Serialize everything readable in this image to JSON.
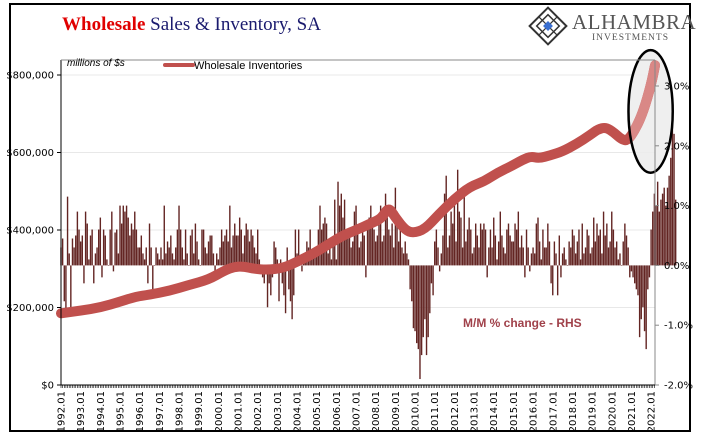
{
  "title": {
    "highlight": "Wholesale",
    "rest": " Sales & Inventory, SA"
  },
  "logo": {
    "name": "ALHAMBRA",
    "sub": "INVESTMENTS",
    "icon": "diamond-lattice-icon"
  },
  "colors": {
    "inventory_line": "#c0504d",
    "inventory_highlight": "#d98886",
    "bars": "#632523",
    "title_red": "#e00000",
    "title_navy": "#1a1a6e",
    "annotation": "#a0414a",
    "highlight_fill": "#ececec"
  },
  "chart_data": {
    "type": "bar+line",
    "title": "Wholesale Sales & Inventory, SA",
    "unit_label": "millions of $s",
    "annotation": "M/M % change - RHS",
    "legend": [
      {
        "name": "Wholesale Inventories",
        "type": "line"
      }
    ],
    "legend_placement": "top-left",
    "grid": true,
    "left_axis": {
      "range": [
        0,
        800000
      ],
      "ticks": [
        0,
        200000,
        400000,
        600000,
        800000
      ],
      "tick_labels": [
        "$0",
        "$200,000",
        "$400,000",
        "$600,000",
        "$800,000"
      ]
    },
    "right_axis": {
      "range": [
        -2.0,
        3.0
      ],
      "ticks": [
        -2.0,
        -1.0,
        0.0,
        1.0,
        2.0,
        3.0
      ],
      "tick_labels": [
        "-2.0%",
        "-1.0%",
        "0.0%",
        "1.0%",
        "2.0%",
        "3.0%"
      ]
    },
    "x_axis": {
      "start": 1992.0,
      "end": 2022.25,
      "tick_labels": [
        "1992.01",
        "1993.01",
        "1994.01",
        "1995.01",
        "1996.01",
        "1997.01",
        "1998.01",
        "1999.01",
        "2000.01",
        "2001.01",
        "2002.01",
        "2003.01",
        "2004.01",
        "2005.01",
        "2006.01",
        "2007.01",
        "2008.01",
        "2009.01",
        "2010.01",
        "2011.01",
        "2012.01",
        "2013.01",
        "2014.01",
        "2015.01",
        "2016.01",
        "2017.01",
        "2018.01",
        "2019.01",
        "2020.01",
        "2021.01",
        "2022.01"
      ]
    },
    "inventory_series": {
      "name": "Wholesale Inventories",
      "axis": "left",
      "x": [
        1992.0,
        1993.0,
        1994.0,
        1995.0,
        1995.8,
        1996.5,
        1997.5,
        1998.5,
        1999.5,
        2000.3,
        2000.8,
        2001.3,
        2001.8,
        2002.5,
        2003.3,
        2004.0,
        2004.8,
        2005.5,
        2006.3,
        2007.0,
        2007.8,
        2008.3,
        2008.65,
        2009.0,
        2009.5,
        2009.9,
        2010.5,
        2011.2,
        2012.0,
        2012.8,
        2013.5,
        2014.2,
        2014.9,
        2015.5,
        2015.9,
        2016.3,
        2016.9,
        2017.5,
        2018.2,
        2018.9,
        2019.3,
        2019.7,
        2020.1,
        2020.5,
        2020.8,
        2021.2,
        2021.6,
        2022.0,
        2022.2
      ],
      "values": [
        185000,
        192000,
        200000,
        215000,
        228000,
        233000,
        243000,
        258000,
        272000,
        295000,
        305000,
        306000,
        300000,
        297000,
        302000,
        318000,
        338000,
        360000,
        385000,
        400000,
        418000,
        430000,
        460000,
        432000,
        400000,
        392000,
        402000,
        440000,
        480000,
        512000,
        525000,
        548000,
        565000,
        582000,
        590000,
        585000,
        593000,
        603000,
        622000,
        645000,
        660000,
        665000,
        652000,
        634000,
        630000,
        660000,
        705000,
        775000,
        825000
      ]
    },
    "mom_series": {
      "name": "M/M % change - RHS",
      "axis": "right",
      "start": 1992.0,
      "step_months": 1,
      "values": [
        0.3,
        0.45,
        -0.6,
        -0.8,
        1.15,
        0.2,
        -0.8,
        0.45,
        0.3,
        0.5,
        0.9,
        0.6,
        0.4,
        0.5,
        -0.3,
        0.9,
        0.7,
        0.1,
        0.5,
        0.6,
        -0.3,
        0.2,
        0.3,
        0.6,
        0.8,
        -0.2,
        0.6,
        0.5,
        0.1,
        0.0,
        0.6,
        0.9,
        -0.1,
        0.55,
        0.6,
        0.2,
        1.0,
        0.7,
        1.0,
        0.9,
        1.0,
        0.8,
        0.5,
        0.7,
        0.6,
        0.9,
        0.6,
        0.3,
        0.3,
        0.5,
        0.2,
        0.1,
        0.3,
        -0.3,
        0.7,
        0.3,
        -0.4,
        0.0,
        0.3,
        0.2,
        0.1,
        0.3,
        0.1,
        1.0,
        0.2,
        0.4,
        0.3,
        0.5,
        0.2,
        0.1,
        0.3,
        0.6,
        1.0,
        0.6,
        0.3,
        0.1,
        0.6,
        0.2,
        0.0,
        0.5,
        0.6,
        0.2,
        0.7,
        0.4,
        0.1,
        0.0,
        0.6,
        0.6,
        0.3,
        0.2,
        0.4,
        0.5,
        0.5,
        0.2,
        -0.1,
        0.2,
        0.1,
        0.3,
        0.6,
        0.4,
        0.5,
        0.6,
        0.4,
        1.0,
        0.3,
        0.5,
        0.7,
        0.5,
        0.5,
        0.8,
        0.6,
        0.2,
        0.5,
        0.7,
        0.6,
        0.4,
        0.6,
        0.5,
        0.3,
        0.2,
        0.6,
        0.1,
        -0.1,
        -0.2,
        -0.3,
        -0.1,
        -0.7,
        -0.3,
        -0.5,
        -0.2,
        0.4,
        0.3,
        0.1,
        -0.6,
        0.1,
        -0.3,
        -0.5,
        -0.8,
        0.3,
        -0.4,
        -0.6,
        -0.9,
        -0.5,
        0.6,
        0.2,
        0.6,
        0.1,
        -0.1,
        0.2,
        0.1,
        0.4,
        0.3,
        0.6,
        0.1,
        0.2,
        0.3,
        0.3,
        0.6,
        1.0,
        0.6,
        0.7,
        0.8,
        0.7,
        0.2,
        0.4,
        0.1,
        0.4,
        1.1,
        0.1,
        1.4,
        1.0,
        1.2,
        0.8,
        1.1,
        0.6,
        0.5,
        0.6,
        0.3,
        0.4,
        0.9,
        1.0,
        0.6,
        0.3,
        0.4,
        0.6,
        0.5,
        -0.2,
        0.7,
        0.8,
        1.0,
        0.8,
        0.6,
        0.4,
        0.5,
        0.8,
        1.0,
        0.4,
        0.5,
        1.2,
        0.8,
        0.6,
        0.5,
        0.7,
        0.3,
        1.3,
        0.9,
        0.4,
        0.6,
        0.3,
        0.2,
        0.4,
        0.2,
        0.1,
        -0.4,
        -0.6,
        -1.05,
        -1.1,
        -1.3,
        -1.4,
        -1.9,
        -1.5,
        -1.2,
        -0.9,
        -1.5,
        -1.2,
        -0.8,
        -0.3,
        -0.5,
        0.4,
        0.6,
        0.3,
        -0.1,
        0.2,
        0.5,
        1.2,
        1.5,
        0.3,
        0.5,
        0.9,
        0.7,
        1.1,
        0.4,
        1.6,
        0.9,
        0.8,
        0.3,
        1.3,
        0.4,
        0.6,
        0.8,
        0.6,
        0.2,
        0.3,
        0.7,
        0.5,
        0.3,
        0.7,
        0.6,
        0.7,
        0.6,
        -0.2,
        0.3,
        0.6,
        0.3,
        0.8,
        0.5,
        0.1,
        0.4,
        0.9,
        0.5,
        0.3,
        0.2,
        0.6,
        0.7,
        0.5,
        0.4,
        0.4,
        0.7,
        0.6,
        0.9,
        0.3,
        0.5,
        0.3,
        -0.2,
        0.6,
        0.3,
        -0.1,
        0.2,
        0.3,
        0.2,
        0.7,
        0.8,
        0.4,
        0.1,
        0.6,
        0.3,
        0.3,
        0.7,
        0.4,
        -0.3,
        -0.5,
        0.4,
        0.2,
        -0.5,
        0.5,
        -0.2,
        0.2,
        0.3,
        0.1,
        0.0,
        0.4,
        0.3,
        0.6,
        0.5,
        0.2,
        0.4,
        0.6,
        0.1,
        0.7,
        0.2,
        0.3,
        0.6,
        0.5,
        0.2,
        0.3,
        0.8,
        0.4,
        0.7,
        0.5,
        0.6,
        0.2,
        0.9,
        0.5,
        0.7,
        0.3,
        0.4,
        0.9,
        0.6,
        0.3,
        0.4,
        0.1,
        0.2,
        0.0,
        0.4,
        0.7,
        0.5,
        0.3,
        -0.2,
        -0.1,
        -0.2,
        -0.3,
        -0.4,
        -0.5,
        -1.2,
        -0.9,
        -0.7,
        -1.1,
        -1.4,
        -0.4,
        -0.2,
        0.6,
        0.9,
        1.2,
        1.0,
        1.4,
        0.9,
        1.1,
        1.2,
        1.3,
        1.0,
        1.3,
        1.5,
        1.8,
        2.5,
        2.2,
        1.1
      ]
    },
    "highlight": {
      "shape": "ellipse",
      "x_range": [
        2020.85,
        2023.1
      ],
      "y_range_pct": [
        1.55,
        3.6
      ]
    }
  }
}
